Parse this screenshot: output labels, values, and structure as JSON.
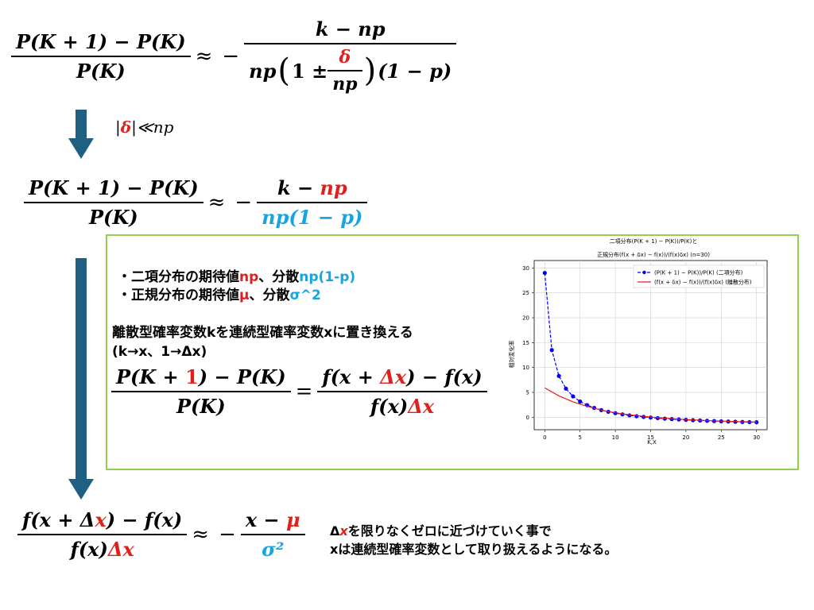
{
  "eq1": {
    "lhs_num": "P(K + 1) − P(K)",
    "lhs_den": "P(K)",
    "approx": "≈",
    "minus": "−",
    "rhs_num": "k − np",
    "rhs_den_pre": "np",
    "paren_open": "(",
    "one_pm": "1 ±",
    "delta": "δ",
    "inner_den": "np",
    "paren_close": ")",
    "tail": "(1 − p)"
  },
  "condition": {
    "bar_open": "|",
    "delta": "δ",
    "rest": "|≪np"
  },
  "eq2": {
    "lhs_num": "P(K + 1) − P(K)",
    "lhs_den": "P(K)",
    "approx": "≈",
    "minus": "−",
    "rhs_num_pre": "k − ",
    "rhs_num_red": "np",
    "rhs_den": "np(1 − p)"
  },
  "box": {
    "bullet1_pre": "・二項分布の期待値",
    "bullet1_red": "np",
    "bullet1_mid": "、分散",
    "bullet1_blue": "np(1-p)",
    "bullet2_pre": "・正規分布の期待値",
    "bullet2_red": "μ",
    "bullet2_mid": "、分散",
    "bullet2_blue": "σ^2",
    "replace_line1": "離散型確率変数kを連続型確率変数xに置き換える",
    "replace_line2": "(k→x、1→Δx)",
    "eq3": {
      "lhs_num_pre": "P(K + ",
      "lhs_num_red": "1",
      "lhs_num_post": ") − P(K)",
      "lhs_den": "P(K)",
      "equals": "=",
      "rhs_num_pre": "f(x + ",
      "rhs_num_red": "Δx",
      "rhs_num_post": ") − f(x)",
      "rhs_den_pre": "f(x)",
      "rhs_den_red": "Δx"
    }
  },
  "eq4": {
    "lhs_num_pre": "f(x + Δ",
    "lhs_num_red": "x",
    "lhs_num_post": ") − f(x)",
    "lhs_den_pre": "f(x)",
    "lhs_den_red": "Δx",
    "approx": "≈",
    "minus": "−",
    "rhs_num_pre": "x − ",
    "rhs_num_red": "μ",
    "rhs_den": "σ²"
  },
  "footnote": {
    "line1_pre": "Δ",
    "line1_red": "x",
    "line1_post": "を限りなくゼロに近づけていく事で",
    "line2": "xは連続型確率変数として取り扱えるようになる。"
  },
  "chart_data": {
    "type": "line",
    "title_line1": "二項分布(P(K + 1) − P(K))/P(K)と",
    "title_line2": "正規分布(f(x + δx) − f(x))/(f(x)δx) (n=30)",
    "xlabel": "K,X",
    "ylabel": "相対変化率",
    "xlim": [
      -1.5,
      31.5
    ],
    "ylim": [
      -2.5,
      31.5
    ],
    "xticks": [
      0,
      5,
      10,
      15,
      20,
      25,
      30
    ],
    "yticks": [
      0,
      5,
      10,
      15,
      20,
      25,
      30
    ],
    "grid": true,
    "legend_position": "top-right",
    "series": [
      {
        "name": "(P(K + 1) − P(K))/P(K) (二項分布)",
        "color": "#0000ff",
        "style": "dashed-markers",
        "x": [
          0,
          1,
          2,
          3,
          4,
          5,
          6,
          7,
          8,
          9,
          10,
          11,
          12,
          13,
          14,
          15,
          16,
          17,
          18,
          19,
          20,
          21,
          22,
          23,
          24,
          25,
          26,
          27,
          28,
          29,
          30
        ],
        "y": [
          29.0,
          13.5,
          8.3,
          5.75,
          4.2,
          3.17,
          2.43,
          1.88,
          1.44,
          1.1,
          0.82,
          0.58,
          0.38,
          0.21,
          0.07,
          -0.06,
          -0.18,
          -0.28,
          -0.37,
          -0.45,
          -0.52,
          -0.59,
          -0.65,
          -0.71,
          -0.76,
          -0.81,
          -0.85,
          -0.9,
          -0.94,
          -0.97,
          -1.0
        ]
      },
      {
        "name": "(f(x + δx) − f(x))/(f(x)δx) (離散分布)",
        "color": "#e0201c",
        "style": "solid",
        "x": [
          0,
          2,
          4,
          6,
          8,
          10,
          12,
          14,
          16,
          18,
          20,
          22,
          24,
          26,
          28,
          30
        ],
        "y": [
          5.9,
          4.3,
          3.1,
          2.2,
          1.45,
          0.9,
          0.5,
          0.18,
          -0.08,
          -0.28,
          -0.45,
          -0.6,
          -0.72,
          -0.82,
          -0.9,
          -0.97
        ]
      }
    ]
  }
}
